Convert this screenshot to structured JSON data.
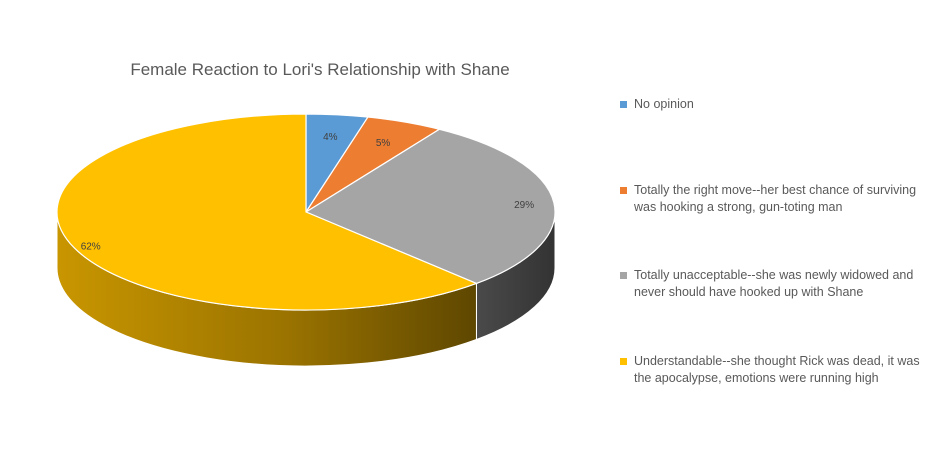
{
  "chart_data": {
    "type": "pie",
    "title": "Female Reaction to Lori's Relationship with Shane",
    "legend_position": "right",
    "slices": [
      {
        "label": "No opinion",
        "value": 4,
        "data_label": "4%",
        "color": "#5B9BD5",
        "side_color": "#41719C"
      },
      {
        "label": "Totally the right move--her best chance of surviving was hooking a strong, gun-toting man",
        "value": 5,
        "data_label": "5%",
        "color": "#ED7D31",
        "side_color": "#AE5A21"
      },
      {
        "label": "Totally unacceptable--she was newly widowed and never should have hooked up with Shane",
        "value": 29,
        "data_label": "29%",
        "color": "#A5A5A5",
        "side_color": "#404040"
      },
      {
        "label": "Understandable--she thought Rick was dead, it was the apocalypse, emotions were running high",
        "value": 62,
        "data_label": "62%",
        "color": "#FFC000",
        "side_color": "#A67C00"
      }
    ]
  }
}
